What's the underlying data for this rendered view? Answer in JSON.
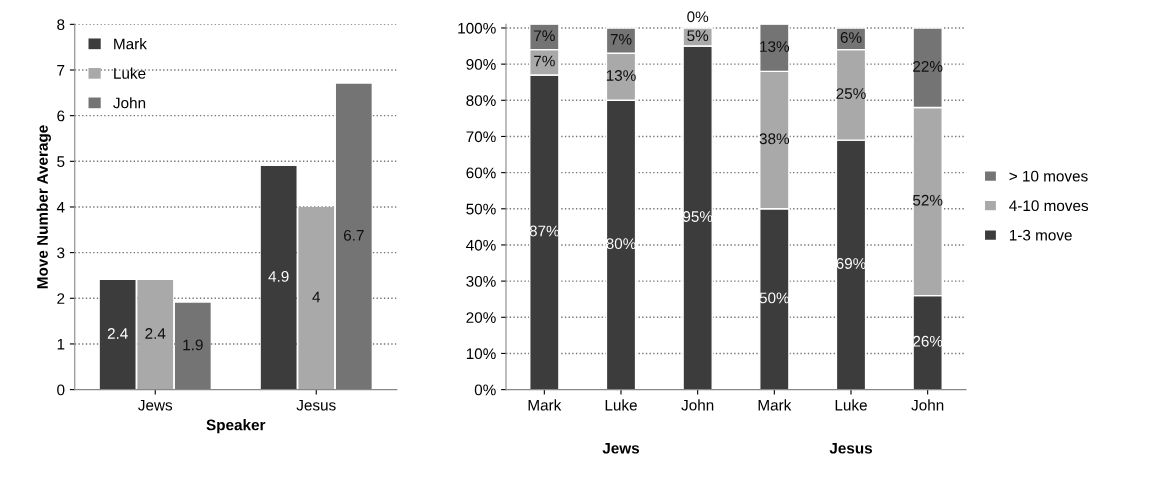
{
  "chart_data": [
    {
      "type": "bar",
      "xlabel": "Speaker",
      "ylabel": "Move Number Average",
      "categories": [
        "Jews",
        "Jesus"
      ],
      "series": [
        {
          "name": "Mark",
          "color": "#3c3c3c",
          "values": [
            2.4,
            4.9
          ]
        },
        {
          "name": "Luke",
          "color": "#a9a9a9",
          "values": [
            2.4,
            4
          ]
        },
        {
          "name": "John",
          "color": "#747474",
          "values": [
            1.9,
            6.7
          ]
        }
      ],
      "ylim": [
        0,
        8
      ],
      "yticks": [
        0,
        1,
        2,
        3,
        4,
        5,
        6,
        7,
        8
      ],
      "grid": "y",
      "legend": "top left",
      "data_labels": true
    },
    {
      "type": "bar",
      "stacked": true,
      "categories": [
        "Mark",
        "Luke",
        "John",
        "Mark",
        "Luke",
        "John"
      ],
      "series": [
        {
          "name": "1-3 move",
          "color": "#3c3c3c",
          "values": [
            87,
            80,
            95,
            50,
            69,
            26
          ],
          "value_labels": [
            "87%",
            "80%",
            "95%",
            "50%",
            "69%",
            "26%"
          ]
        },
        {
          "name": "4-10 moves",
          "color": "#a9a9a9",
          "values": [
            7,
            13,
            5,
            38,
            25,
            52
          ],
          "value_labels": [
            "7%",
            "13%",
            "5%",
            "38%",
            "25%",
            "52%"
          ]
        },
        {
          "name": "> 10 moves",
          "color": "#747474",
          "values": [
            7,
            7,
            0,
            13,
            6,
            22
          ],
          "value_labels": [
            "7%",
            "7%",
            "0%",
            "13%",
            "6%",
            "22%"
          ]
        }
      ],
      "annotations": [
        "Jews",
        "Jesus"
      ],
      "ylim": [
        0,
        101
      ],
      "yticks": [
        {
          "value": 0,
          "label": "0%"
        },
        {
          "value": 10,
          "label": "10%"
        },
        {
          "value": 20,
          "label": "20%"
        },
        {
          "value": 30,
          "label": "30%"
        },
        {
          "value": 40,
          "label": "40%"
        },
        {
          "value": 50,
          "label": "50%"
        },
        {
          "value": 60,
          "label": "60%"
        },
        {
          "value": 70,
          "label": "70%"
        },
        {
          "value": 80,
          "label": "80%"
        },
        {
          "value": 90,
          "label": "90%"
        },
        {
          "value": 100,
          "label": "100%"
        }
      ],
      "grid": "y",
      "legend": "right"
    }
  ]
}
